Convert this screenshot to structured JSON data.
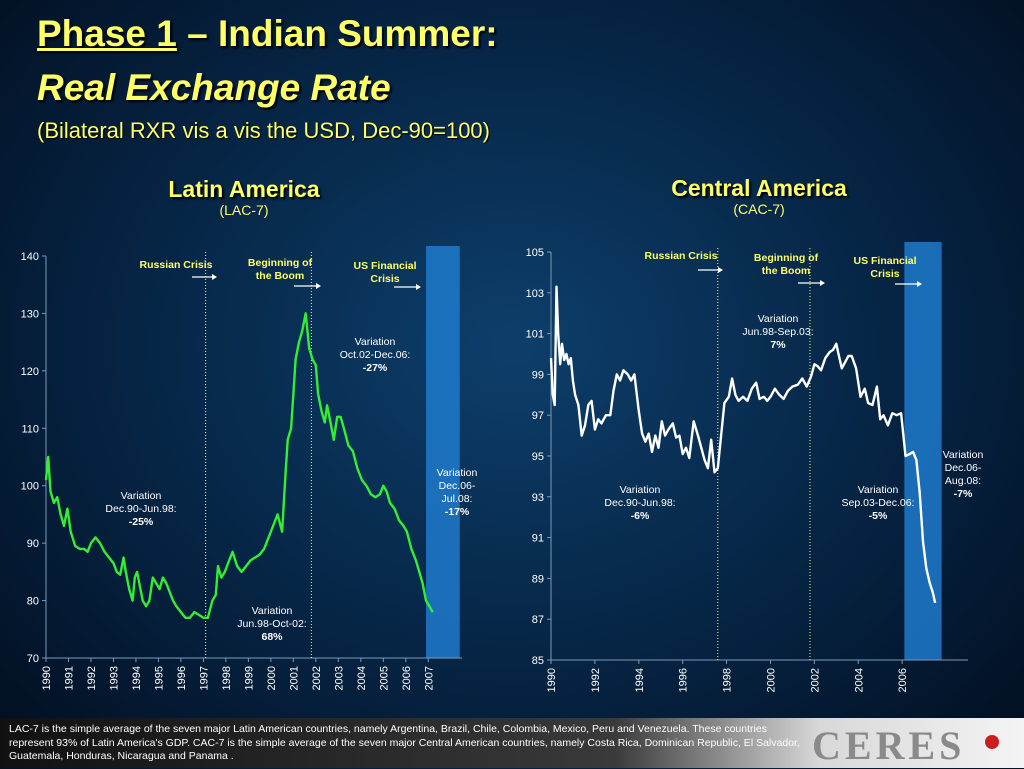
{
  "header": {
    "title_prefix": "Phase 1",
    "title_suffix": " – Indian Summer:",
    "title_line2": "Real Exchange Rate",
    "subtitle": "(Bilateral RXR vis a vis the USD, Dec-90=100)"
  },
  "charts": {
    "left": {
      "title": "Latin America",
      "subtitle": "(LAC-7)"
    },
    "right": {
      "title": "Central America",
      "subtitle": "(CAC-7)"
    }
  },
  "footer": {
    "note": "LAC-7 is the simple average of the seven major Latin American countries, namely Argentina, Brazil, Chile, Colombia, Mexico, Peru and Venezuela. These countries represent 93% of Latin America's GDP. CAC-7 is the simple average of the seven major Central American countries, namely Costa Rica, Dominican Republic, El Salvador, Guatemala, Honduras, Nicaragua and Panama .",
    "logo_text": "CERES"
  },
  "colors": {
    "title": "#ffff66",
    "lac_line": "#33ee33",
    "cac_line": "#ffffff",
    "crisis_band": "#1f7acc",
    "annotation_title": "#ffff66",
    "annotation_text": "#ffffff",
    "logo_dot": "#c81e1e"
  },
  "chart_data": [
    {
      "type": "line",
      "title": "Latin America",
      "subtitle": "(LAC-7)",
      "ylim": [
        70,
        140
      ],
      "yticks": [
        70,
        80,
        90,
        100,
        110,
        120,
        130,
        140
      ],
      "xlim": [
        1990.0,
        2008.5
      ],
      "xticks": [
        "1990",
        "1991",
        "1992",
        "1993",
        "1994",
        "1995",
        "1996",
        "1997",
        "1998",
        "1999",
        "2000",
        "2001",
        "2002",
        "2003",
        "2004",
        "2005",
        "2006",
        "2007"
      ],
      "band": [
        2006.9,
        2008.4
      ],
      "vlines": [
        1997.1,
        2001.8
      ],
      "series": [
        {
          "points": [
            [
              1990.0,
              101
            ],
            [
              1990.1,
              105
            ],
            [
              1990.2,
              99
            ],
            [
              1990.35,
              97
            ],
            [
              1990.5,
              98
            ],
            [
              1990.65,
              95
            ],
            [
              1990.8,
              93
            ],
            [
              1990.95,
              96
            ],
            [
              1991.1,
              92
            ],
            [
              1991.3,
              89.5
            ],
            [
              1991.5,
              89
            ],
            [
              1991.7,
              89
            ],
            [
              1991.85,
              88.5
            ],
            [
              1992.0,
              90
            ],
            [
              1992.2,
              91
            ],
            [
              1992.4,
              90
            ],
            [
              1992.6,
              88.5
            ],
            [
              1992.8,
              87.5
            ],
            [
              1993.0,
              86.5
            ],
            [
              1993.15,
              85
            ],
            [
              1993.3,
              84.5
            ],
            [
              1993.45,
              87.5
            ],
            [
              1993.55,
              85
            ],
            [
              1993.7,
              82
            ],
            [
              1993.85,
              80
            ],
            [
              1993.95,
              84
            ],
            [
              1994.05,
              85
            ],
            [
              1994.15,
              83
            ],
            [
              1994.3,
              80
            ],
            [
              1994.45,
              79
            ],
            [
              1994.6,
              80
            ],
            [
              1994.75,
              84
            ],
            [
              1994.9,
              83
            ],
            [
              1995.05,
              82
            ],
            [
              1995.2,
              84
            ],
            [
              1995.35,
              83
            ],
            [
              1995.5,
              81.5
            ],
            [
              1995.65,
              80
            ],
            [
              1995.8,
              79
            ],
            [
              1996.0,
              78
            ],
            [
              1996.2,
              77
            ],
            [
              1996.4,
              77
            ],
            [
              1996.6,
              78
            ],
            [
              1996.8,
              77.5
            ],
            [
              1997.0,
              77
            ],
            [
              1997.2,
              77
            ],
            [
              1997.4,
              80
            ],
            [
              1997.55,
              81
            ],
            [
              1997.65,
              86
            ],
            [
              1997.8,
              84
            ],
            [
              1997.95,
              85
            ],
            [
              1998.1,
              86.5
            ],
            [
              1998.3,
              88.5
            ],
            [
              1998.5,
              86
            ],
            [
              1998.7,
              85
            ],
            [
              1998.9,
              86
            ],
            [
              1999.1,
              87
            ],
            [
              1999.3,
              87.5
            ],
            [
              1999.5,
              88
            ],
            [
              1999.7,
              89
            ],
            [
              1999.9,
              91
            ],
            [
              2000.1,
              93
            ],
            [
              2000.3,
              95
            ],
            [
              2000.5,
              92
            ],
            [
              2000.65,
              102
            ],
            [
              2000.75,
              108
            ],
            [
              2000.9,
              110
            ],
            [
              2001.0,
              116
            ],
            [
              2001.1,
              122
            ],
            [
              2001.25,
              125
            ],
            [
              2001.4,
              127
            ],
            [
              2001.55,
              130
            ],
            [
              2001.7,
              124
            ],
            [
              2001.85,
              122
            ],
            [
              2002.0,
              121
            ],
            [
              2002.1,
              116
            ],
            [
              2002.25,
              113
            ],
            [
              2002.4,
              111
            ],
            [
              2002.5,
              114
            ],
            [
              2002.65,
              111
            ],
            [
              2002.8,
              108
            ],
            [
              2002.95,
              112
            ],
            [
              2003.1,
              112
            ],
            [
              2003.25,
              110
            ],
            [
              2003.45,
              107
            ],
            [
              2003.65,
              106
            ],
            [
              2003.85,
              103
            ],
            [
              2004.05,
              101
            ],
            [
              2004.25,
              100
            ],
            [
              2004.45,
              98.5
            ],
            [
              2004.65,
              98
            ],
            [
              2004.85,
              98.5
            ],
            [
              2005.0,
              100
            ],
            [
              2005.15,
              99
            ],
            [
              2005.3,
              97
            ],
            [
              2005.5,
              96
            ],
            [
              2005.7,
              94
            ],
            [
              2005.9,
              93
            ],
            [
              2006.05,
              92
            ],
            [
              2006.25,
              89
            ],
            [
              2006.45,
              87
            ],
            [
              2006.6,
              85
            ],
            [
              2006.75,
              83
            ],
            [
              2006.9,
              80
            ],
            [
              2007.05,
              79
            ],
            [
              2007.2,
              78
            ]
          ]
        }
      ],
      "annotations": [
        {
          "label": "Russian Crisis",
          "x": 1997.1
        },
        {
          "label": "Beginning  of",
          "label2": "the Boom",
          "x": 2001.8
        },
        {
          "label": "US Financial",
          "label2": "Crisis",
          "x": 2006.9
        },
        {
          "lines": [
            "Variation",
            "Dec.90-Jun.98:"
          ],
          "value": "-25%"
        },
        {
          "lines": [
            "Variation",
            "Jun.98-Oct-02:"
          ],
          "value": "68%"
        },
        {
          "lines": [
            "Variation",
            "Oct.02-Dec.06:"
          ],
          "value": "-27%"
        },
        {
          "lines": [
            "Variation",
            "Dec.06-",
            "Jul.08:"
          ],
          "value": "-17%"
        }
      ]
    },
    {
      "type": "line",
      "title": "Central America",
      "subtitle": "(CAC-7)",
      "ylim": [
        85,
        105
      ],
      "yticks": [
        85,
        87,
        89,
        91,
        93,
        95,
        97,
        99,
        101,
        103,
        105
      ],
      "xlim": [
        1990.0,
        2009.0
      ],
      "xticks": [
        "1990",
        "1992",
        "1994",
        "1996",
        "1998",
        "2000",
        "2002",
        "2004",
        "2006"
      ],
      "band": [
        2006.1,
        2007.8
      ],
      "vlines": [
        1997.6,
        2001.8
      ],
      "series": [
        {
          "points": [
            [
              1990.0,
              99.8
            ],
            [
              1990.08,
              98
            ],
            [
              1990.17,
              97.5
            ],
            [
              1990.25,
              103.3
            ],
            [
              1990.33,
              101
            ],
            [
              1990.42,
              99.5
            ],
            [
              1990.5,
              100.5
            ],
            [
              1990.6,
              99.7
            ],
            [
              1990.7,
              100
            ],
            [
              1990.8,
              99.5
            ],
            [
              1990.9,
              99.8
            ],
            [
              1991.0,
              98.7
            ],
            [
              1991.1,
              98
            ],
            [
              1991.25,
              97.5
            ],
            [
              1991.4,
              96
            ],
            [
              1991.55,
              96.5
            ],
            [
              1991.7,
              97.5
            ],
            [
              1991.85,
              97.7
            ],
            [
              1992.0,
              96.3
            ],
            [
              1992.15,
              96.8
            ],
            [
              1992.3,
              96.6
            ],
            [
              1992.5,
              97
            ],
            [
              1992.7,
              97
            ],
            [
              1992.85,
              98.2
            ],
            [
              1993.0,
              99
            ],
            [
              1993.15,
              98.7
            ],
            [
              1993.3,
              99.2
            ],
            [
              1993.5,
              99
            ],
            [
              1993.65,
              98.7
            ],
            [
              1993.8,
              99
            ],
            [
              1994.0,
              97.2
            ],
            [
              1994.15,
              96.1
            ],
            [
              1994.3,
              95.7
            ],
            [
              1994.45,
              96.1
            ],
            [
              1994.6,
              95.2
            ],
            [
              1994.75,
              96
            ],
            [
              1994.9,
              95.4
            ],
            [
              1995.05,
              96.7
            ],
            [
              1995.2,
              96
            ],
            [
              1995.35,
              96.3
            ],
            [
              1995.55,
              96.6
            ],
            [
              1995.7,
              95.9
            ],
            [
              1995.85,
              96
            ],
            [
              1996.0,
              95.1
            ],
            [
              1996.15,
              95.4
            ],
            [
              1996.3,
              94.9
            ],
            [
              1996.5,
              96.7
            ],
            [
              1996.7,
              96
            ],
            [
              1996.85,
              95.4
            ],
            [
              1997.0,
              94.8
            ],
            [
              1997.15,
              94.4
            ],
            [
              1997.3,
              95.8
            ],
            [
              1997.45,
              94.2
            ],
            [
              1997.6,
              94.4
            ],
            [
              1997.75,
              96
            ],
            [
              1997.9,
              97.6
            ],
            [
              1998.1,
              97.9
            ],
            [
              1998.25,
              98.8
            ],
            [
              1998.4,
              98
            ],
            [
              1998.55,
              97.7
            ],
            [
              1998.75,
              97.9
            ],
            [
              1998.95,
              97.7
            ],
            [
              1999.15,
              98.3
            ],
            [
              1999.35,
              98.6
            ],
            [
              1999.5,
              97.8
            ],
            [
              1999.7,
              97.9
            ],
            [
              1999.85,
              97.7
            ],
            [
              2000.0,
              97.9
            ],
            [
              2000.2,
              98.3
            ],
            [
              2000.4,
              98
            ],
            [
              2000.6,
              97.8
            ],
            [
              2000.8,
              98.2
            ],
            [
              2001.0,
              98.4
            ],
            [
              2001.25,
              98.5
            ],
            [
              2001.45,
              98.8
            ],
            [
              2001.65,
              98.4
            ],
            [
              2001.85,
              98.9
            ],
            [
              2002.0,
              99.5
            ],
            [
              2002.15,
              99.4
            ],
            [
              2002.3,
              99.2
            ],
            [
              2002.5,
              99.8
            ],
            [
              2002.7,
              100.1
            ],
            [
              2002.85,
              100.2
            ],
            [
              2003.0,
              100.5
            ],
            [
              2003.1,
              100
            ],
            [
              2003.25,
              99.3
            ],
            [
              2003.4,
              99.6
            ],
            [
              2003.55,
              99.9
            ],
            [
              2003.7,
              99.9
            ],
            [
              2003.9,
              99.3
            ],
            [
              2004.1,
              97.9
            ],
            [
              2004.3,
              98.3
            ],
            [
              2004.45,
              97.6
            ],
            [
              2004.65,
              97.5
            ],
            [
              2004.85,
              98.4
            ],
            [
              2005.0,
              96.8
            ],
            [
              2005.15,
              97
            ],
            [
              2005.35,
              96.5
            ],
            [
              2005.55,
              97.1
            ],
            [
              2005.75,
              97
            ],
            [
              2005.95,
              97.1
            ],
            [
              2006.15,
              95
            ],
            [
              2006.35,
              95.1
            ],
            [
              2006.5,
              95.2
            ],
            [
              2006.65,
              94.8
            ],
            [
              2006.8,
              93.2
            ],
            [
              2006.95,
              90.8
            ],
            [
              2007.1,
              89.5
            ],
            [
              2007.25,
              88.8
            ],
            [
              2007.4,
              88.3
            ],
            [
              2007.5,
              87.8
            ]
          ]
        }
      ],
      "annotations": [
        {
          "label": "Russian Crisis",
          "x": 1997.6
        },
        {
          "label": "Beginning  of",
          "label2": "the Boom",
          "x": 2001.8
        },
        {
          "label": "US Financial",
          "label2": "Crisis",
          "x": 2006.1
        },
        {
          "lines": [
            "Variation",
            "Dec.90-Jun.98:"
          ],
          "value": "-6%"
        },
        {
          "lines": [
            "Variation",
            "Jun.98-Sep.03:"
          ],
          "value": "7%"
        },
        {
          "lines": [
            "Variation",
            "Sep.03-Dec.06:"
          ],
          "value": "-5%"
        },
        {
          "lines": [
            "Variation",
            "Dec.06-",
            "Aug.08:"
          ],
          "value": "-7%"
        }
      ]
    }
  ]
}
